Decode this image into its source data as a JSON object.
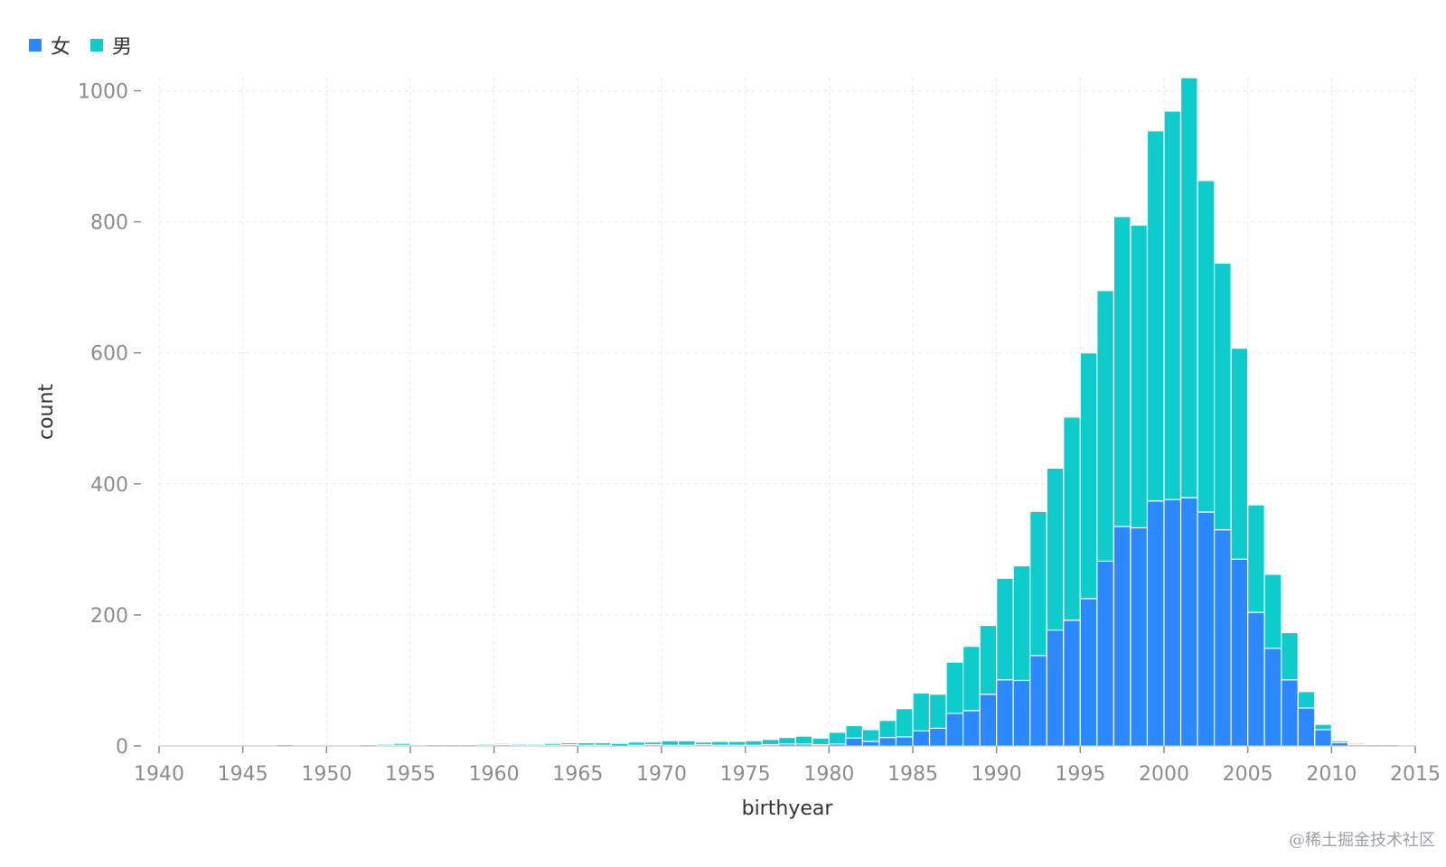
{
  "legend": {
    "female_label": "女",
    "male_label": "男",
    "female_color": "#2B88FF",
    "male_color": "#0FCCCC"
  },
  "watermark": "@稀土掘金技术社区",
  "chart_data": {
    "type": "bar",
    "stacked": true,
    "xlabel": "birthyear",
    "ylabel": "count",
    "xlim": [
      1940,
      2015
    ],
    "ylim": [
      0,
      1020
    ],
    "x_ticks": [
      1940,
      1945,
      1950,
      1955,
      1960,
      1965,
      1970,
      1975,
      1980,
      1985,
      1990,
      1995,
      2000,
      2005,
      2010,
      2015
    ],
    "y_ticks": [
      0,
      200,
      400,
      600,
      800,
      1000
    ],
    "grid": true,
    "legend_position": "top-left",
    "categories": [
      1940,
      1941,
      1942,
      1943,
      1944,
      1945,
      1946,
      1947,
      1948,
      1949,
      1950,
      1951,
      1952,
      1953,
      1954,
      1955,
      1956,
      1957,
      1958,
      1959,
      1960,
      1961,
      1962,
      1963,
      1964,
      1965,
      1966,
      1967,
      1968,
      1969,
      1970,
      1971,
      1972,
      1973,
      1974,
      1975,
      1976,
      1977,
      1978,
      1979,
      1980,
      1981,
      1982,
      1983,
      1984,
      1985,
      1986,
      1987,
      1988,
      1989,
      1990,
      1991,
      1992,
      1993,
      1994,
      1995,
      1996,
      1997,
      1998,
      1999,
      2000,
      2001,
      2002,
      2003,
      2004,
      2005,
      2006,
      2007,
      2008,
      2009,
      2010,
      2011,
      2012,
      2013,
      2014
    ],
    "series": [
      {
        "name": "女",
        "color": "#2B88FF",
        "values": [
          0,
          0,
          0,
          0,
          0,
          0,
          0,
          2,
          0,
          0,
          0,
          0,
          0,
          1,
          1,
          0,
          0,
          0,
          0,
          1,
          2,
          1,
          1,
          1,
          2,
          1,
          1,
          0,
          1,
          2,
          1,
          1,
          2,
          1,
          1,
          1,
          2,
          3,
          3,
          2,
          3,
          12,
          7,
          13,
          14,
          23,
          27,
          50,
          54,
          79,
          101,
          100,
          138,
          177,
          192,
          225,
          282,
          335,
          333,
          374,
          376,
          379,
          357,
          330,
          285,
          204,
          149,
          101,
          58,
          25,
          5,
          2,
          0,
          0,
          0
        ]
      },
      {
        "name": "男",
        "color": "#0FCCCC",
        "values": [
          1,
          0,
          0,
          0,
          0,
          1,
          0,
          0,
          0,
          0,
          1,
          1,
          2,
          2,
          3,
          1,
          2,
          2,
          2,
          2,
          2,
          2,
          2,
          3,
          3,
          4,
          4,
          4,
          5,
          4,
          7,
          7,
          4,
          6,
          6,
          7,
          8,
          10,
          12,
          10,
          18,
          19,
          18,
          26,
          43,
          58,
          52,
          78,
          98,
          105,
          155,
          175,
          220,
          247,
          310,
          375,
          413,
          473,
          462,
          565,
          593,
          641,
          506,
          407,
          322,
          164,
          113,
          72,
          25,
          8,
          3,
          2,
          2,
          2,
          1
        ]
      }
    ]
  }
}
